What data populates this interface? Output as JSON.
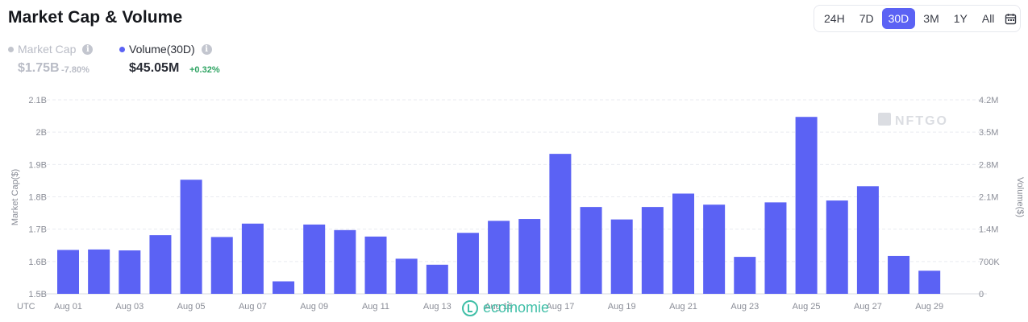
{
  "header": {
    "title": "Market Cap & Volume"
  },
  "time_range": {
    "options": [
      "24H",
      "7D",
      "30D",
      "3M",
      "1Y",
      "All"
    ],
    "selected": "30D",
    "calendar_icon": "calendar-icon"
  },
  "stats": {
    "market_cap": {
      "label": "Market Cap",
      "value": "$1.75B",
      "change": "-7.80%",
      "color": "#b9bcc6"
    },
    "volume": {
      "label": "Volume(30D)",
      "value": "$45.05M",
      "change": "+0.32%",
      "color": "#5b62f4"
    }
  },
  "colors": {
    "bar": "#5b62f4",
    "positive": "#2fa463",
    "muted": "#b9bcc6",
    "accent": "#5b62f4"
  },
  "brand_watermark": {
    "text": "NFTGO",
    "icon": "nftgo-logo-icon"
  },
  "footer_watermark": {
    "text": "ecoinomie",
    "icon": "ecoinomie-logo-icon"
  },
  "chart_data": {
    "type": "bar",
    "timezone_label": "UTC",
    "xlabel": "",
    "ylabel_left": "Market Cap($)",
    "ylabel_right": "Volume($)",
    "left_axis": {
      "ticks": [
        "1.5B",
        "1.6B",
        "1.7B",
        "1.8B",
        "1.9B",
        "2B",
        "2.1B"
      ],
      "ylim": [
        1.5,
        2.1
      ],
      "unit": "B"
    },
    "right_axis": {
      "ticks": [
        "0",
        "700K",
        "1.4M",
        "2.1M",
        "2.8M",
        "3.5M",
        "4.2M"
      ],
      "ylim": [
        0,
        4.2
      ],
      "unit": "M"
    },
    "x_tick_labels": [
      "Aug 01",
      "Aug 03",
      "Aug 05",
      "Aug 07",
      "Aug 09",
      "Aug 11",
      "Aug 13",
      "Aug 15",
      "Aug 17",
      "Aug 19",
      "Aug 21",
      "Aug 23",
      "Aug 25",
      "Aug 27",
      "Aug 29"
    ],
    "grid": "horizontal dashed",
    "series": [
      {
        "name": "Volume(30D)",
        "axis": "right",
        "categories": [
          "Aug 01",
          "Aug 02",
          "Aug 03",
          "Aug 04",
          "Aug 05",
          "Aug 06",
          "Aug 07",
          "Aug 08",
          "Aug 09",
          "Aug 10",
          "Aug 11",
          "Aug 12",
          "Aug 13",
          "Aug 14",
          "Aug 15",
          "Aug 16",
          "Aug 17",
          "Aug 18",
          "Aug 19",
          "Aug 20",
          "Aug 21",
          "Aug 22",
          "Aug 23",
          "Aug 24",
          "Aug 25",
          "Aug 26",
          "Aug 27",
          "Aug 28",
          "Aug 29"
        ],
        "values": [
          0.95,
          0.96,
          0.94,
          1.27,
          2.47,
          1.23,
          1.52,
          0.27,
          1.5,
          1.38,
          1.24,
          0.76,
          0.63,
          1.32,
          1.58,
          1.62,
          3.03,
          1.88,
          1.61,
          1.88,
          2.17,
          1.93,
          0.8,
          1.98,
          3.83,
          2.02,
          2.33,
          0.82,
          0.5
        ]
      }
    ]
  }
}
